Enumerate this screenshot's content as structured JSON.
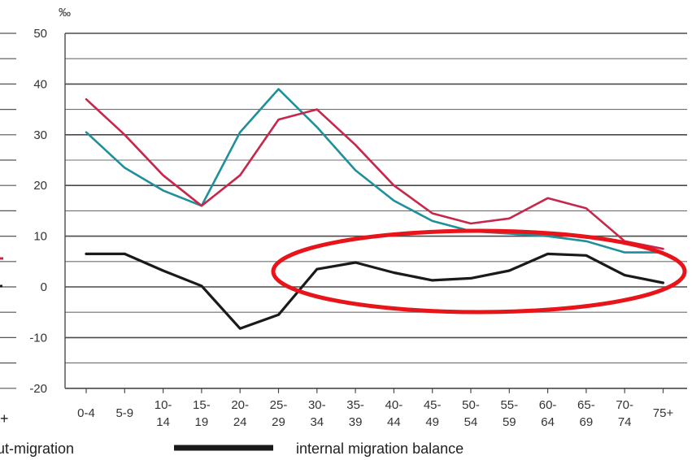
{
  "chart_data": {
    "type": "line",
    "y_unit": "‰",
    "ylim": [
      -20,
      50
    ],
    "yticks": [
      -20,
      -10,
      0,
      10,
      20,
      30,
      40,
      50
    ],
    "grid": true,
    "categories": [
      "0-4",
      "5-9",
      "10-14",
      "15-19",
      "20-24",
      "25-29",
      "30-34",
      "35-39",
      "40-44",
      "45-49",
      "50-54",
      "55-59",
      "60-64",
      "65-69",
      "70-74",
      "75+"
    ],
    "category_lines": [
      [
        "0-4"
      ],
      [
        "5-9"
      ],
      [
        "10-",
        "14"
      ],
      [
        "15-",
        "19"
      ],
      [
        "20-",
        "24"
      ],
      [
        "25-",
        "29"
      ],
      [
        "30-",
        "34"
      ],
      [
        "35-",
        "39"
      ],
      [
        "40-",
        "44"
      ],
      [
        "45-",
        "49"
      ],
      [
        "50-",
        "54"
      ],
      [
        "55-",
        "59"
      ],
      [
        "60-",
        "64"
      ],
      [
        "65-",
        "69"
      ],
      [
        "70-",
        "74"
      ],
      [
        "75+"
      ]
    ],
    "series": [
      {
        "color": "#1f8f9c",
        "values": [
          30.5,
          23.5,
          19,
          16,
          30.5,
          39,
          31.5,
          23,
          17,
          13,
          11,
          10.5,
          10,
          9,
          6.8,
          6.8
        ]
      },
      {
        "color": "#c8264a",
        "values": [
          37,
          30,
          22,
          16,
          22,
          33,
          35,
          28,
          20,
          14.5,
          12.5,
          13.5,
          17.5,
          15.5,
          9,
          7.5
        ]
      },
      {
        "name": "internal migration balance",
        "color": "#1a1a1a",
        "values": [
          6.5,
          6.5,
          3.2,
          0.2,
          -8.2,
          -5.5,
          3.5,
          4.8,
          2.8,
          1.3,
          1.7,
          3.2,
          6.5,
          6.2,
          2.3,
          0.8
        ]
      }
    ],
    "legend": {
      "left_fragment": "ut-migration",
      "left_plus": "+",
      "right_label": "internal migration balance"
    },
    "annotation": {
      "shape": "ellipse",
      "color": "#e8141a"
    }
  }
}
